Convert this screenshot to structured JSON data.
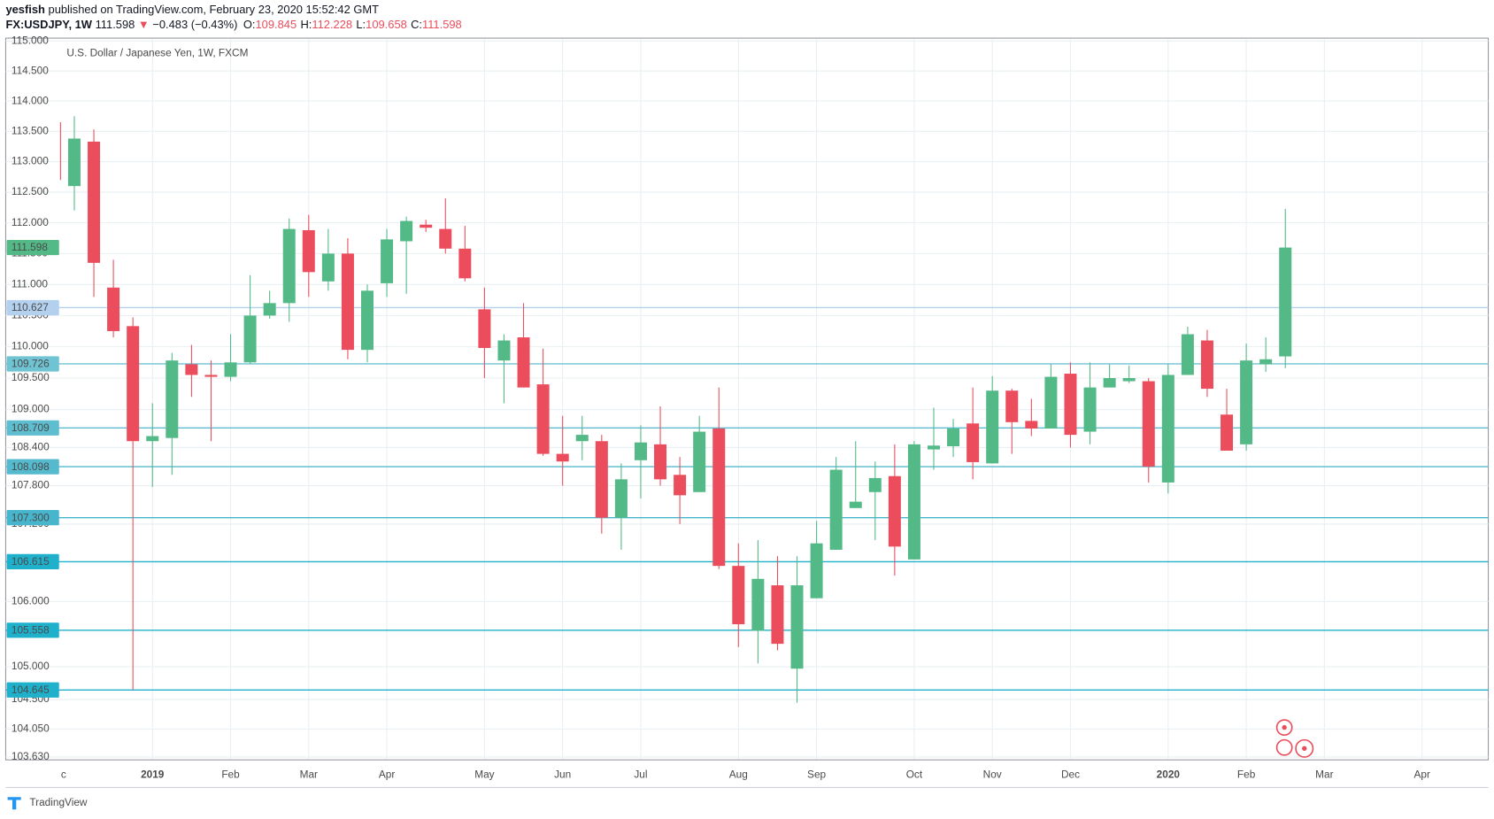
{
  "header": {
    "author": "yesfish",
    "published": "published on TradingView.com, February 23, 2020 15:52:42 GMT",
    "symbol": "FX:USDJPY, 1W",
    "last": "111.598",
    "direction": "▼",
    "change": "−0.483 (−0.43%)",
    "ohlc": [
      {
        "label": "O:",
        "value": "109.845"
      },
      {
        "label": "H:",
        "value": "112.228"
      },
      {
        "label": "L:",
        "value": "109.658"
      },
      {
        "label": "C:",
        "value": "111.598"
      }
    ]
  },
  "chart_data": {
    "type": "candlestick",
    "title": "U.S. Dollar / Japanese Yen, 1W, FXCM",
    "categories": [
      "c",
      null,
      null,
      null,
      null,
      "2019",
      null,
      null,
      null,
      "Feb",
      null,
      null,
      null,
      "Mar",
      null,
      null,
      null,
      "Apr",
      null,
      null,
      null,
      null,
      "May",
      null,
      null,
      null,
      "Jun",
      null,
      null,
      null,
      "Jul",
      null,
      null,
      null,
      null,
      "Aug",
      null,
      null,
      null,
      "Sep",
      null,
      null,
      null,
      null,
      "Oct",
      null,
      null,
      null,
      "Nov",
      null,
      null,
      null,
      "Dec",
      null,
      null,
      null,
      null,
      "2020",
      null,
      null,
      null,
      "Feb",
      null,
      null,
      null,
      "Mar",
      null,
      null,
      null,
      null,
      "Apr",
      null,
      null,
      null
    ],
    "open": [
      113.65,
      112.6,
      113.33,
      110.95,
      110.33,
      108.5,
      108.55,
      109.72,
      109.55,
      109.52,
      109.75,
      110.5,
      110.7,
      111.88,
      111.05,
      111.5,
      109.95,
      111.02,
      111.7,
      111.97,
      111.9,
      111.58,
      110.6,
      109.78,
      110.15,
      109.4,
      108.3,
      108.5,
      108.5,
      107.3,
      108.2,
      108.45,
      107.97,
      107.7,
      108.7,
      106.55,
      105.55,
      106.25,
      104.97,
      106.05,
      106.8,
      107.45,
      107.7,
      107.95,
      106.65,
      108.37,
      108.42,
      108.78,
      108.15,
      109.3,
      108.82,
      108.7,
      109.57,
      108.65,
      109.35,
      109.45,
      109.45,
      107.85,
      109.55,
      110.1,
      108.92,
      108.45,
      109.72,
      109.845,
      null,
      null,
      null,
      null,
      null,
      null,
      null,
      null,
      null,
      null
    ],
    "high": [
      113.7,
      113.75,
      113.53,
      111.4,
      110.47,
      109.1,
      109.9,
      110.03,
      109.78,
      110.2,
      111.15,
      110.9,
      112.07,
      112.13,
      111.9,
      111.75,
      111.0,
      111.9,
      112.1,
      112.05,
      112.4,
      111.95,
      110.95,
      110.2,
      110.7,
      109.97,
      108.9,
      108.9,
      108.6,
      108.15,
      108.75,
      109.05,
      108.25,
      108.9,
      109.35,
      106.9,
      106.95,
      106.7,
      106.7,
      107.25,
      108.25,
      108.5,
      108.18,
      108.45,
      108.5,
      109.03,
      108.85,
      109.35,
      109.53,
      109.33,
      109.17,
      109.72,
      109.75,
      109.75,
      109.72,
      109.7,
      109.5,
      109.72,
      110.32,
      110.27,
      109.33,
      110.05,
      110.15,
      112.228,
      null,
      null,
      null,
      null,
      null,
      null,
      null,
      null,
      null,
      null
    ],
    "low": [
      112.6,
      112.2,
      110.8,
      110.15,
      104.65,
      107.78,
      107.97,
      109.2,
      108.5,
      109.45,
      109.72,
      110.45,
      110.4,
      110.8,
      110.9,
      109.8,
      109.75,
      110.8,
      110.85,
      111.85,
      111.5,
      111.05,
      109.5,
      109.1,
      109.35,
      108.27,
      107.8,
      108.2,
      107.05,
      106.8,
      107.6,
      107.8,
      107.2,
      107.7,
      106.5,
      105.3,
      105.05,
      105.25,
      104.45,
      106.05,
      106.8,
      107.45,
      106.95,
      106.4,
      106.65,
      108.05,
      108.25,
      107.9,
      108.15,
      108.3,
      108.58,
      108.7,
      108.4,
      108.45,
      109.35,
      109.42,
      107.85,
      107.68,
      109.55,
      109.2,
      108.35,
      108.35,
      109.6,
      109.658,
      null,
      null,
      null,
      null,
      null,
      null,
      null,
      null,
      null,
      null
    ],
    "close": [
      112.7,
      113.38,
      111.35,
      110.25,
      108.5,
      108.58,
      109.78,
      109.55,
      109.52,
      109.75,
      110.5,
      110.7,
      111.9,
      111.2,
      111.5,
      109.95,
      110.9,
      111.73,
      112.03,
      111.92,
      111.58,
      111.1,
      109.98,
      110.1,
      109.35,
      108.3,
      108.18,
      108.6,
      107.3,
      107.9,
      108.48,
      107.9,
      107.65,
      108.65,
      106.55,
      105.65,
      106.35,
      105.35,
      106.25,
      106.9,
      108.05,
      107.55,
      107.92,
      106.85,
      108.45,
      108.43,
      108.7,
      108.17,
      109.3,
      108.8,
      108.7,
      109.52,
      108.6,
      109.35,
      109.5,
      109.5,
      108.1,
      109.55,
      110.2,
      109.33,
      108.35,
      109.78,
      109.8,
      111.598,
      null,
      null,
      null,
      null,
      null,
      null,
      null,
      null,
      null,
      null
    ],
    "up_color": "#53b987",
    "down_color": "#eb4d5c",
    "log_scale": true,
    "grid": true,
    "ylim": [
      103.63,
      115
    ],
    "yticks": [
      {
        "value": 115,
        "label": "115.000"
      },
      {
        "value": 114.5,
        "label": "114.500"
      },
      {
        "value": 114,
        "label": "114.000"
      },
      {
        "value": 113.5,
        "label": "113.500"
      },
      {
        "value": 113,
        "label": "113.000"
      },
      {
        "value": 112.5,
        "label": "112.500"
      },
      {
        "value": 112,
        "label": "112.000"
      },
      {
        "value": 111.5,
        "label": "111.500"
      },
      {
        "value": 111,
        "label": "111.000"
      },
      {
        "value": 110.5,
        "label": "110.500"
      },
      {
        "value": 110,
        "label": "110.000"
      },
      {
        "value": 109.5,
        "label": "109.500"
      },
      {
        "value": 109,
        "label": "109.000"
      },
      {
        "value": 108.4,
        "label": "108.400"
      },
      {
        "value": 107.8,
        "label": "107.800"
      },
      {
        "value": 107.2,
        "label": "107.200"
      },
      {
        "value": 106,
        "label": "106.000"
      },
      {
        "value": 105,
        "label": "105.000"
      },
      {
        "value": 104.5,
        "label": "104.500"
      },
      {
        "value": 104.05,
        "label": "104.050"
      },
      {
        "value": 103.63,
        "label": "103.630"
      }
    ],
    "levels": [
      {
        "value": 110.627,
        "label": "110.627",
        "color": "#b3d0ee",
        "text_color": "#131722"
      },
      {
        "value": 109.726,
        "label": "109.726",
        "color": "#6fc3d3",
        "text_color": "#131722"
      },
      {
        "value": 108.709,
        "label": "108.709",
        "color": "#5fbdd0",
        "text_color": "#131722"
      },
      {
        "value": 108.098,
        "label": "108.098",
        "color": "#55bace",
        "text_color": "#131722"
      },
      {
        "value": 107.3,
        "label": "107.300",
        "color": "#47b6cd",
        "text_color": "#131722"
      },
      {
        "value": 106.615,
        "label": "106.615",
        "color": "#1fb1cc",
        "text_color": "#ffffff"
      },
      {
        "value": 105.558,
        "label": "105.558",
        "color": "#1fb1cc",
        "text_color": "#ffffff"
      },
      {
        "value": 104.645,
        "label": "104.645",
        "color": "#1fb1cc",
        "text_color": "#ffffff"
      }
    ],
    "last_price": {
      "value": 111.598,
      "label": "111.598",
      "color": "#53b987"
    }
  },
  "footer": {
    "brand": "TradingView"
  }
}
